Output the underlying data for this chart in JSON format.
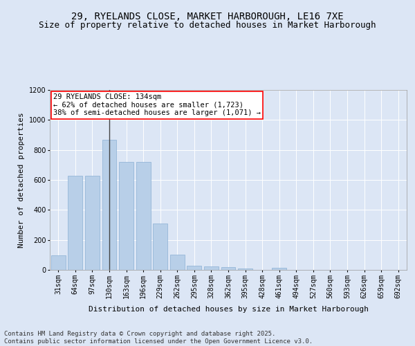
{
  "title": "29, RYELANDS CLOSE, MARKET HARBOROUGH, LE16 7XE",
  "subtitle": "Size of property relative to detached houses in Market Harborough",
  "xlabel": "Distribution of detached houses by size in Market Harborough",
  "ylabel": "Number of detached properties",
  "footer_line1": "Contains HM Land Registry data © Crown copyright and database right 2025.",
  "footer_line2": "Contains public sector information licensed under the Open Government Licence v3.0.",
  "bar_values": [
    95,
    630,
    630,
    870,
    720,
    720,
    310,
    100,
    30,
    25,
    18,
    8,
    0,
    12,
    0,
    0,
    0,
    0,
    0,
    0,
    0
  ],
  "categories": [
    "31sqm",
    "64sqm",
    "97sqm",
    "130sqm",
    "163sqm",
    "196sqm",
    "229sqm",
    "262sqm",
    "295sqm",
    "328sqm",
    "362sqm",
    "395sqm",
    "428sqm",
    "461sqm",
    "494sqm",
    "527sqm",
    "560sqm",
    "593sqm",
    "626sqm",
    "659sqm",
    "692sqm"
  ],
  "bar_color": "#b8cfe8",
  "bar_edge_color": "#8aafd4",
  "vline_x": 3,
  "vline_color": "#444444",
  "annotation_text": "29 RYELANDS CLOSE: 134sqm\n← 62% of detached houses are smaller (1,723)\n38% of semi-detached houses are larger (1,071) →",
  "annotation_box_color": "white",
  "annotation_box_edge_color": "red",
  "ylim": [
    0,
    1200
  ],
  "yticks": [
    0,
    200,
    400,
    600,
    800,
    1000,
    1200
  ],
  "background_color": "#dce6f5",
  "plot_bg_color": "#dce6f5",
  "grid_color": "white",
  "title_fontsize": 10,
  "subtitle_fontsize": 9,
  "axis_label_fontsize": 8,
  "tick_fontsize": 7,
  "annotation_fontsize": 7.5,
  "footer_fontsize": 6.5
}
